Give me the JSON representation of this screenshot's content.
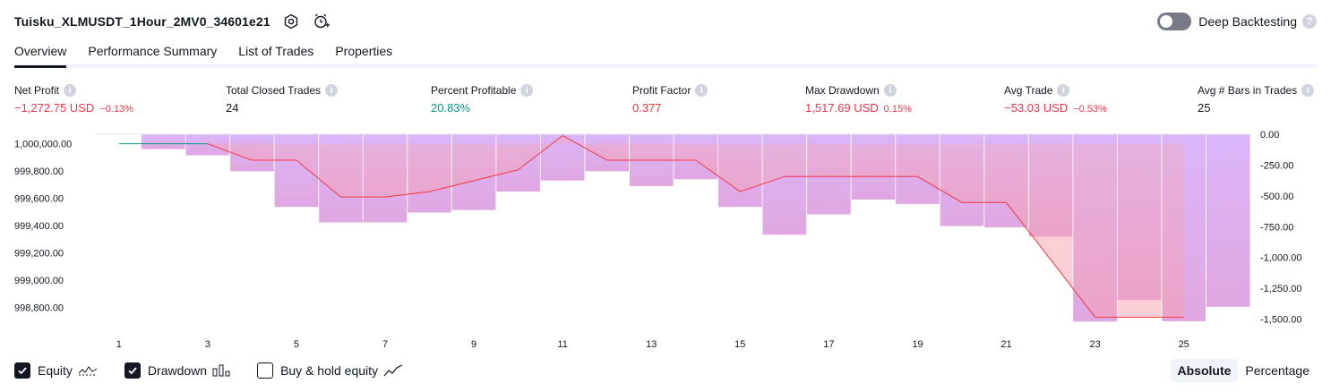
{
  "header": {
    "title": "Tuisku_XLMUSDT_1Hour_2MV0_34601e21",
    "deep_backtesting_label": "Deep Backtesting",
    "help_glyph": "?"
  },
  "tabs": [
    {
      "label": "Overview",
      "active": true
    },
    {
      "label": "Performance Summary",
      "active": false
    },
    {
      "label": "List of Trades",
      "active": false
    },
    {
      "label": "Properties",
      "active": false
    }
  ],
  "metrics": [
    {
      "label": "Net Profit",
      "value": "−1,272.75 USD",
      "sub": "−0.13%",
      "tone": "neg"
    },
    {
      "label": "Total Closed Trades",
      "value": "24",
      "sub": "",
      "tone": "neutral"
    },
    {
      "label": "Percent Profitable",
      "value": "20.83%",
      "sub": "",
      "tone": "pos"
    },
    {
      "label": "Profit Factor",
      "value": "0.377",
      "sub": "",
      "tone": "neg"
    },
    {
      "label": "Max Drawdown",
      "value": "1,517.69 USD",
      "sub": "0.15%",
      "tone": "neg"
    },
    {
      "label": "Avg Trade",
      "value": "−53.03 USD",
      "sub": "−0.53%",
      "tone": "neg"
    },
    {
      "label": "Avg # Bars in Trades",
      "value": "25",
      "sub": "",
      "tone": "neutral"
    }
  ],
  "info_glyph": "i",
  "chart_data": {
    "type": "line",
    "x_ticks": [
      "1",
      "3",
      "5",
      "7",
      "9",
      "11",
      "13",
      "15",
      "17",
      "19",
      "21",
      "23",
      "25"
    ],
    "left_axis": {
      "ticks": [
        "1,000,000.00",
        "999,800.00",
        "999,600.00",
        "999,400.00",
        "999,200.00",
        "999,000.00",
        "998,800.00"
      ],
      "tick_values": [
        1000000,
        999800,
        999600,
        999400,
        999200,
        999000,
        998800
      ],
      "range": [
        998700,
        1000070
      ]
    },
    "right_axis": {
      "ticks": [
        "0.00",
        "-250.00",
        "-500.00",
        "-750.00",
        "-1,000.00",
        "-1,250.00",
        "-1,500.00"
      ],
      "tick_values": [
        0,
        -250,
        -500,
        -750,
        -1000,
        -1250,
        -1500
      ],
      "range": [
        -1518,
        0
      ]
    },
    "equity": {
      "x": [
        1,
        2,
        3,
        4,
        5,
        6,
        7,
        8,
        9,
        10,
        11,
        12,
        13,
        14,
        15,
        16,
        17,
        18,
        19,
        20,
        21,
        22,
        23,
        24,
        25
      ],
      "values": [
        1000000,
        1000000,
        1000000,
        999880,
        999880,
        999610,
        999610,
        999650,
        999730,
        999810,
        1000060,
        999880,
        999880,
        999880,
        999650,
        999760,
        999760,
        999760,
        999760,
        999570,
        999570,
        999150,
        998730,
        998730,
        998730
      ]
    },
    "drawdown": {
      "x": [
        1,
        2,
        3,
        4,
        5,
        6,
        7,
        8,
        9,
        10,
        11,
        12,
        13,
        14,
        15,
        16,
        17,
        18,
        19,
        20,
        21,
        22,
        23,
        24,
        25,
        26
      ],
      "values": [
        0,
        -120,
        -170,
        -300,
        -590,
        -715,
        -715,
        -635,
        -615,
        -465,
        -375,
        -300,
        -420,
        -365,
        -590,
        -815,
        -650,
        -530,
        -565,
        -745,
        -755,
        -830,
        -1520,
        -1345,
        -1518,
        -1400
      ]
    },
    "series": [
      {
        "name": "Equity",
        "color": "#f23645"
      },
      {
        "name": "Drawdown",
        "color": "#c39bff"
      }
    ]
  },
  "legend": [
    {
      "label": "Equity",
      "checked": true,
      "icon": "equity-line-icon"
    },
    {
      "label": "Drawdown",
      "checked": true,
      "icon": "drawdown-bars-icon"
    },
    {
      "label": "Buy & hold equity",
      "checked": false,
      "icon": "buyhold-line-icon"
    }
  ],
  "mode": {
    "absolute_label": "Absolute",
    "percentage_label": "Percentage"
  },
  "colors": {
    "equity_loss": "#f23645",
    "equity_gain": "#089981",
    "drawdown_bar": "#d9b4fb",
    "equity_fill": "#f7a7b3"
  }
}
